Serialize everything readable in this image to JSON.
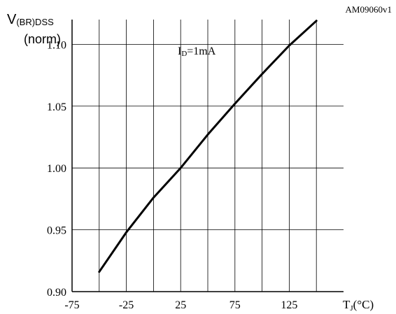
{
  "chart_data": {
    "type": "line",
    "figure_id": "AM09060v1",
    "ylabel": {
      "main": "V",
      "subscript": "(BR)DSS",
      "line2": "(norm)"
    },
    "xlabel": {
      "main": "T",
      "subscript": "J",
      "unit": "(°C)"
    },
    "annotation": {
      "main": "I",
      "subscript": "D",
      "rest": "=1mA"
    },
    "xlim": [
      -75,
      175
    ],
    "ylim": [
      0.9,
      1.12
    ],
    "x_ticks": [
      -75,
      -50,
      -25,
      0,
      25,
      50,
      75,
      100,
      125,
      150
    ],
    "x_tick_labels": [
      "-75",
      "-25",
      "25",
      "75",
      "125"
    ],
    "x_tick_label_values": [
      -75,
      -25,
      25,
      75,
      125
    ],
    "y_tick_labels": [
      "0.90",
      "0.95",
      "1.00",
      "1.05",
      "1.10"
    ],
    "y_tick_values": [
      0.9,
      0.95,
      1.0,
      1.05,
      1.1
    ],
    "grid": true,
    "series": [
      {
        "x": [
          -50,
          -25,
          0,
          25,
          50,
          75,
          100,
          125,
          150
        ],
        "y": [
          0.916,
          0.948,
          0.976,
          1.0,
          1.027,
          1.052,
          1.076,
          1.099,
          1.119
        ],
        "color": "#000000"
      }
    ]
  }
}
